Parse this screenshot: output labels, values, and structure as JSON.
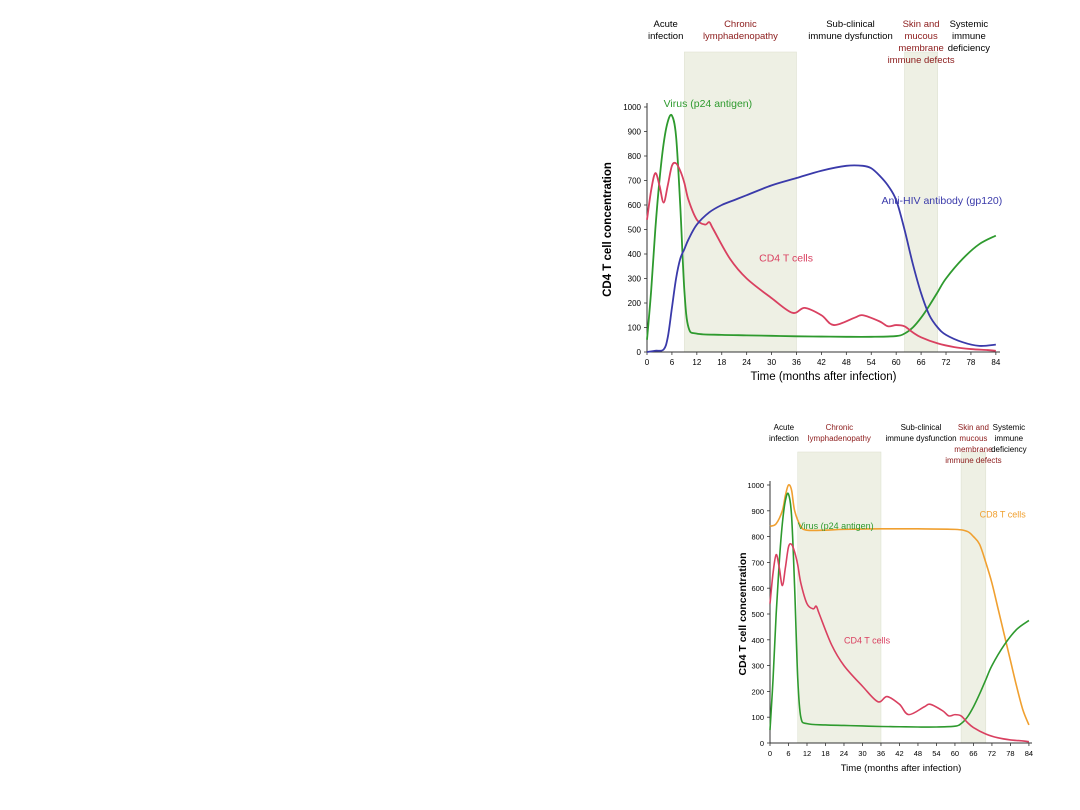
{
  "chart_data": [
    {
      "type": "line",
      "ylabel": "CD4 T cell concentration",
      "xlabel": "Time (months after infection)",
      "xlim": [
        0,
        85
      ],
      "ylim": [
        0,
        1000
      ],
      "x_ticks": [
        0,
        6,
        12,
        18,
        24,
        30,
        36,
        42,
        48,
        54,
        60,
        66,
        72,
        78,
        84
      ],
      "y_ticks": [
        0,
        100,
        200,
        300,
        400,
        500,
        600,
        700,
        800,
        900,
        1000
      ],
      "phases": [
        {
          "label": "Acute infection",
          "lines": [
            "Acute",
            "infection"
          ],
          "x_start": 0,
          "x_end": 9,
          "shaded": false,
          "color": "#000000"
        },
        {
          "label": "Chronic lymphadenopathy",
          "lines": [
            "Chronic",
            "lymphadenopathy"
          ],
          "x_start": 9,
          "x_end": 36,
          "shaded": true,
          "color": "#8b1a1a"
        },
        {
          "label": "Sub-clinical immune dysfunction",
          "lines": [
            "Sub-clinical",
            "immune dysfunction"
          ],
          "x_start": 36,
          "x_end": 62,
          "shaded": false,
          "color": "#000000"
        },
        {
          "label": "Skin and mucous membrane immune defects",
          "lines": [
            "Skin and",
            "mucous",
            "membrane",
            "immune defects"
          ],
          "x_start": 62,
          "x_end": 70,
          "shaded": true,
          "color": "#8b1a1a"
        },
        {
          "label": "Systemic immune deficiency",
          "lines": [
            "Systemic",
            "immune",
            "deficiency"
          ],
          "x_start": 70,
          "x_end": 85,
          "shaded": false,
          "color": "#000000"
        }
      ],
      "series": [
        {
          "name": "Virus (p24 antigen)",
          "color": "#2e9a2e",
          "x": [
            0,
            1,
            2,
            3,
            4,
            5,
            6,
            7,
            8,
            9,
            10,
            12,
            18,
            24,
            30,
            36,
            42,
            48,
            54,
            60,
            62,
            64,
            66,
            68,
            70,
            72,
            76,
            80,
            84
          ],
          "y": [
            50,
            250,
            500,
            700,
            850,
            940,
            965,
            880,
            600,
            250,
            100,
            75,
            70,
            68,
            66,
            64,
            63,
            62,
            62,
            65,
            75,
            100,
            140,
            190,
            245,
            300,
            380,
            440,
            475
          ]
        },
        {
          "name": "CD4 T cells",
          "color": "#d94060",
          "x": [
            0,
            1,
            2,
            3,
            4,
            5,
            6,
            7,
            8,
            9,
            10,
            12,
            14,
            15,
            16,
            20,
            24,
            30,
            35,
            38,
            42,
            45,
            50,
            52,
            56,
            58,
            60,
            62,
            64,
            66,
            70,
            74,
            78,
            82,
            84
          ],
          "y": [
            540,
            660,
            730,
            680,
            610,
            680,
            760,
            770,
            740,
            690,
            620,
            540,
            520,
            530,
            500,
            380,
            300,
            220,
            160,
            180,
            150,
            110,
            140,
            150,
            125,
            105,
            110,
            105,
            80,
            60,
            35,
            20,
            12,
            8,
            5
          ]
        },
        {
          "name": "Anti-HIV antibody (gp120)",
          "color": "#3a3aaa",
          "x": [
            0,
            2,
            4,
            5,
            6,
            7,
            8,
            9,
            10,
            12,
            15,
            18,
            21,
            24,
            30,
            36,
            42,
            48,
            52,
            54,
            56,
            58,
            60,
            62,
            64,
            66,
            68,
            70,
            72,
            76,
            80,
            84
          ],
          "y": [
            0,
            5,
            10,
            60,
            180,
            300,
            380,
            420,
            460,
            520,
            570,
            600,
            620,
            640,
            680,
            710,
            740,
            760,
            760,
            750,
            720,
            680,
            620,
            500,
            360,
            240,
            150,
            100,
            70,
            40,
            25,
            30
          ]
        }
      ],
      "series_labels": [
        {
          "text": "Virus (p24 antigen)",
          "x": 4,
          "y": 1000,
          "color": "#2e9a2e",
          "anchor": "start"
        },
        {
          "text": "CD4 T cells",
          "x": 27,
          "y": 370,
          "color": "#d94060",
          "anchor": "start"
        },
        {
          "text": "Anti-HIV antibody (gp120)",
          "x": 71,
          "y": 605,
          "color": "#3a3aaa",
          "anchor": "middle"
        }
      ]
    },
    {
      "type": "line",
      "ylabel": "CD4 T cell concentration",
      "xlabel": "Time (months after infection)",
      "xlim": [
        0,
        85
      ],
      "ylim": [
        0,
        1000
      ],
      "x_ticks": [
        0,
        6,
        12,
        18,
        24,
        30,
        36,
        42,
        48,
        54,
        60,
        66,
        72,
        78,
        84
      ],
      "y_ticks": [
        0,
        100,
        200,
        300,
        400,
        500,
        600,
        700,
        800,
        900,
        1000
      ],
      "phases": [
        {
          "label": "Acute infection",
          "lines": [
            "Acute",
            "infection"
          ],
          "x_start": 0,
          "x_end": 9,
          "shaded": false,
          "color": "#000000"
        },
        {
          "label": "Chronic lymphadenopathy",
          "lines": [
            "Chronic",
            "lymphadenopathy"
          ],
          "x_start": 9,
          "x_end": 36,
          "shaded": true,
          "color": "#8b1a1a"
        },
        {
          "label": "Sub-clinical immune dysfunction",
          "lines": [
            "Sub-clinical",
            "immune dysfunction"
          ],
          "x_start": 36,
          "x_end": 62,
          "shaded": false,
          "color": "#000000"
        },
        {
          "label": "Skin and mucous membrane immune defects",
          "lines": [
            "Skin and",
            "mucous",
            "membrane",
            "immune defects"
          ],
          "x_start": 62,
          "x_end": 70,
          "shaded": true,
          "color": "#8b1a1a"
        },
        {
          "label": "Systemic immune deficiency",
          "lines": [
            "Systemic",
            "immune",
            "deficiency"
          ],
          "x_start": 70,
          "x_end": 85,
          "shaded": false,
          "color": "#000000"
        }
      ],
      "series": [
        {
          "name": "CD8 T cells",
          "color": "#f0a030",
          "x": [
            0,
            2,
            4,
            5,
            6,
            7,
            8,
            10,
            12,
            18,
            24,
            36,
            48,
            60,
            64,
            66,
            68,
            70,
            72,
            74,
            76,
            78,
            80,
            82,
            84
          ],
          "y": [
            840,
            850,
            900,
            960,
            1000,
            980,
            900,
            840,
            825,
            825,
            828,
            830,
            830,
            828,
            820,
            800,
            770,
            700,
            620,
            520,
            420,
            320,
            220,
            130,
            70
          ]
        },
        {
          "name": "Virus (p24 antigen)",
          "color": "#2e9a2e",
          "x": [
            0,
            1,
            2,
            3,
            4,
            5,
            6,
            7,
            8,
            9,
            10,
            12,
            18,
            24,
            30,
            36,
            42,
            48,
            54,
            60,
            62,
            64,
            66,
            68,
            70,
            72,
            76,
            80,
            84
          ],
          "y": [
            50,
            250,
            500,
            700,
            850,
            940,
            965,
            880,
            600,
            250,
            100,
            75,
            70,
            68,
            66,
            64,
            63,
            62,
            62,
            65,
            75,
            100,
            140,
            190,
            245,
            300,
            380,
            440,
            475
          ]
        },
        {
          "name": "CD4 T cells",
          "color": "#d94060",
          "x": [
            0,
            1,
            2,
            3,
            4,
            5,
            6,
            7,
            8,
            9,
            10,
            12,
            14,
            15,
            16,
            20,
            24,
            30,
            35,
            38,
            42,
            45,
            50,
            52,
            56,
            58,
            60,
            62,
            64,
            66,
            70,
            74,
            78,
            82,
            84
          ],
          "y": [
            540,
            660,
            730,
            680,
            610,
            680,
            760,
            770,
            740,
            690,
            620,
            540,
            520,
            530,
            500,
            380,
            300,
            220,
            160,
            180,
            150,
            110,
            140,
            150,
            125,
            105,
            110,
            105,
            80,
            60,
            35,
            20,
            12,
            8,
            5
          ]
        }
      ],
      "series_labels": [
        {
          "text": "CD8 T cells",
          "x": 68,
          "y": 875,
          "color": "#f0a030",
          "anchor": "start"
        },
        {
          "text": "Virus (p24 antigen)",
          "x": 9,
          "y": 830,
          "color": "#2e9a2e",
          "anchor": "start"
        },
        {
          "text": "CD4 T cells",
          "x": 24,
          "y": 385,
          "color": "#d94060",
          "anchor": "start"
        }
      ]
    }
  ]
}
